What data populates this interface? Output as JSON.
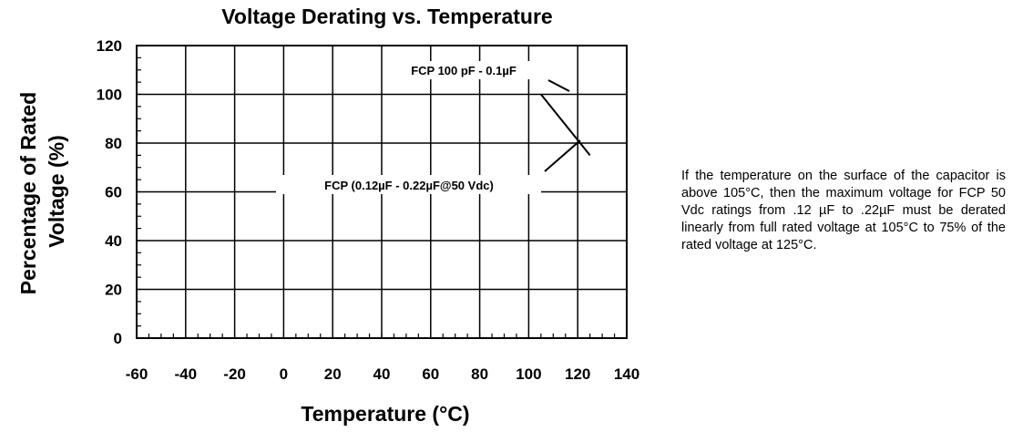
{
  "chart_data": {
    "type": "line",
    "title": "Voltage Derating vs. Temperature",
    "xlabel": "Temperature (°C)",
    "ylabel_lines": [
      "Percentage of Rated",
      "Voltage (%)"
    ],
    "xlim": [
      -60,
      140
    ],
    "ylim": [
      0,
      120
    ],
    "x_ticks": [
      -60,
      -40,
      -20,
      0,
      20,
      40,
      60,
      80,
      100,
      120,
      140
    ],
    "y_ticks": [
      0,
      20,
      40,
      60,
      80,
      100,
      120
    ],
    "grid": true,
    "series": [
      {
        "x": [
          105,
          125
        ],
        "y": [
          100,
          75
        ]
      }
    ],
    "annotations": [
      {
        "text": "FCP 100 pF - 0.1µF"
      },
      {
        "text": "FCP (0.12µF - 0.22µF@50 Vdc)"
      }
    ]
  },
  "side_note": "If the temperature on the surface of the capacitor is above 105°C, then the maximum voltage for FCP 50 Vdc ratings from .12 µF to .22µF must be derated linearly from full rated voltage at 105°C to 75% of the rated voltage at 125°C."
}
